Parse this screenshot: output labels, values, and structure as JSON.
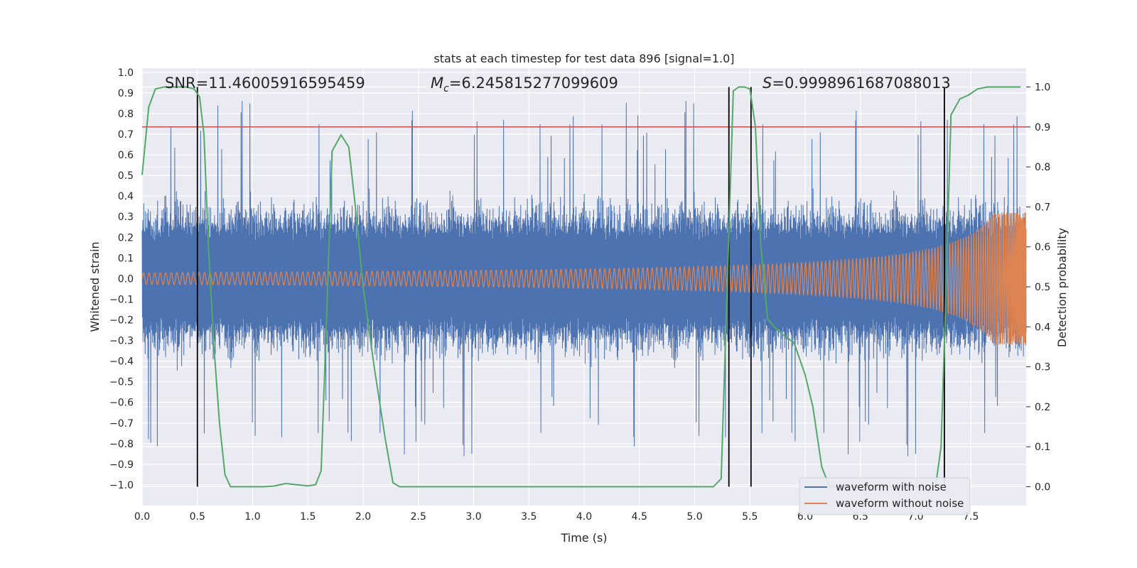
{
  "chart_data": {
    "type": "line",
    "title": "stats at each timestep for test data 896 [signal=1.0]",
    "xlabel": "Time (s)",
    "ylabel": "Whitened strain",
    "y2label": "Detection probability",
    "xlim": [
      0.0,
      8.0
    ],
    "ylim": [
      -1.1,
      1.02
    ],
    "y2lim": [
      -0.047,
      1.047
    ],
    "xticks": [
      "0.0",
      "0.5",
      "1.0",
      "1.5",
      "2.0",
      "2.5",
      "3.0",
      "3.5",
      "4.0",
      "4.5",
      "5.0",
      "5.5",
      "6.0",
      "6.5",
      "7.0",
      "7.5"
    ],
    "yticks": [
      "1.0",
      "0.9",
      "0.8",
      "0.7",
      "0.6",
      "0.5",
      "0.4",
      "0.3",
      "0.2",
      "0.1",
      "0.0",
      "−0.1",
      "−0.2",
      "−0.3",
      "−0.4",
      "−0.5",
      "−0.6",
      "−0.7",
      "−0.8",
      "−0.9",
      "−1.0"
    ],
    "y2ticks": [
      "1.0",
      "0.9",
      "0.8",
      "0.7",
      "0.6",
      "0.5",
      "0.4",
      "0.3",
      "0.2",
      "0.1",
      "0.0"
    ],
    "annotations": {
      "snr": "SNR=11.46005916595459",
      "mc_symbol": "M",
      "mc_sub": "c",
      "mc_value": "=6.245815277099609",
      "s_symbol": "S",
      "s_value": "=0.9998961687088013"
    },
    "threshold": 0.9,
    "detection_markers": [
      0.5,
      5.31,
      5.51,
      7.26
    ],
    "detection_probability": {
      "x": [
        0.0,
        0.06,
        0.12,
        0.2,
        0.3,
        0.4,
        0.47,
        0.52,
        0.56,
        0.6,
        0.65,
        0.7,
        0.75,
        0.8,
        0.9,
        1.0,
        1.1,
        1.2,
        1.3,
        1.4,
        1.5,
        1.57,
        1.62,
        1.66,
        1.72,
        1.8,
        1.87,
        1.93,
        2.0,
        2.1,
        2.2,
        2.27,
        2.33,
        2.5,
        3.0,
        3.5,
        4.0,
        4.5,
        5.0,
        5.17,
        5.24,
        5.3,
        5.35,
        5.4,
        5.45,
        5.5,
        5.55,
        5.6,
        5.66,
        5.72,
        5.8,
        5.9,
        6.0,
        6.07,
        6.15,
        6.22,
        6.3,
        6.4,
        6.5,
        6.6,
        6.7,
        6.8,
        6.9,
        7.0,
        7.1,
        7.18,
        7.23,
        7.27,
        7.32,
        7.4,
        7.48,
        7.56,
        7.65,
        7.8,
        7.95
      ],
      "p": [
        0.78,
        0.95,
        0.995,
        1.0,
        1.0,
        1.0,
        0.995,
        0.975,
        0.88,
        0.6,
        0.35,
        0.16,
        0.03,
        0.0,
        0.0,
        0.0,
        0.0,
        0.002,
        0.008,
        0.005,
        0.002,
        0.005,
        0.04,
        0.35,
        0.84,
        0.88,
        0.85,
        0.7,
        0.5,
        0.3,
        0.12,
        0.01,
        0.0,
        0.0,
        0.0,
        0.0,
        0.0,
        0.0,
        0.0,
        0.0,
        0.02,
        0.55,
        0.99,
        1.0,
        1.0,
        0.995,
        0.9,
        0.6,
        0.42,
        0.4,
        0.38,
        0.36,
        0.28,
        0.2,
        0.05,
        0.0,
        0.0,
        0.0,
        0.0,
        0.0,
        0.0,
        0.0,
        0.0,
        0.0,
        0.0,
        0.0,
        0.1,
        0.45,
        0.93,
        0.97,
        0.98,
        0.995,
        1.0,
        1.0,
        1.0
      ]
    },
    "series": [
      {
        "name": "waveform with noise",
        "color": "#4c72b0",
        "description": "noisy whitened strain, roughly ±0.3 to ±0.9"
      },
      {
        "name": "waveform without noise",
        "color": "#dd8452",
        "description": "chirp: amplitude ~0.03 growing to ~0.3 at 8 s, frequency increasing"
      }
    ],
    "legend": {
      "location": "lower-right",
      "items": [
        {
          "label": "waveform with noise",
          "color": "#4c72b0"
        },
        {
          "label": "waveform without noise",
          "color": "#dd8452"
        }
      ]
    },
    "colors": {
      "background": "#eaeaf2",
      "grid": "#ffffff",
      "noise": "#4c72b0",
      "clean": "#dd8452",
      "probability": "#55a868",
      "threshold": "#c44e52",
      "markers": "#000000"
    }
  }
}
